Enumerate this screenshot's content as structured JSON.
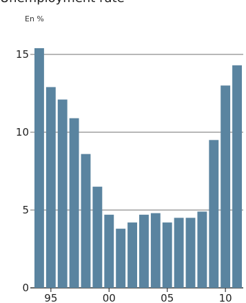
{
  "chart_data": {
    "type": "bar",
    "title": "Unemployment rate",
    "subtitle": "En %",
    "xlabel": "",
    "ylabel": "",
    "ylim": [
      0,
      15.5
    ],
    "yticks": [
      0,
      5,
      10,
      15
    ],
    "ytick_labels": [
      "0",
      "5",
      "10",
      "15"
    ],
    "xtick_labels": [
      "95",
      "00",
      "05",
      "10"
    ],
    "xtick_categories": [
      "1995",
      "2000",
      "2005",
      "2010"
    ],
    "categories": [
      "1994",
      "1995",
      "1996",
      "1997",
      "1998",
      "1999",
      "2000",
      "2001",
      "2002",
      "2003",
      "2004",
      "2005",
      "2006",
      "2007",
      "2008",
      "2009",
      "2010",
      "2011"
    ],
    "values": [
      15.4,
      12.9,
      12.1,
      10.9,
      8.6,
      6.5,
      4.7,
      3.8,
      4.2,
      4.7,
      4.8,
      4.2,
      4.5,
      4.5,
      4.9,
      9.5,
      13.0,
      14.3
    ],
    "grid": true,
    "colors": {
      "bar": "#5a84a0",
      "grid": "#8c8c8c",
      "text": "#222222"
    }
  }
}
